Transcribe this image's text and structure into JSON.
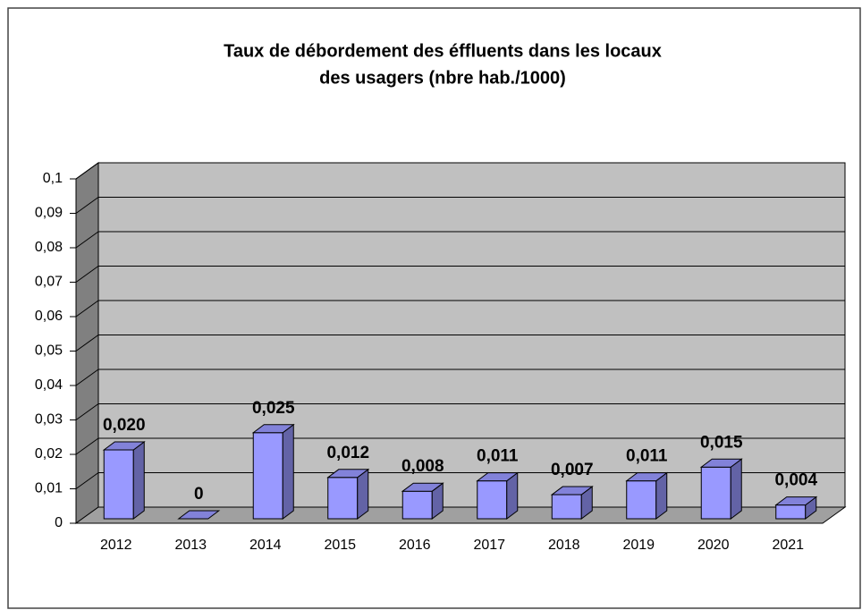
{
  "chart_data": {
    "type": "bar3d",
    "title": [
      "Taux de débordement des éffluents dans les locaux",
      "des usagers (nbre hab./1000)"
    ],
    "categories": [
      "2012",
      "2013",
      "2014",
      "2015",
      "2016",
      "2017",
      "2018",
      "2019",
      "2020",
      "2021"
    ],
    "values": [
      0.02,
      0,
      0.025,
      0.012,
      0.008,
      0.011,
      0.007,
      0.011,
      0.015,
      0.004
    ],
    "value_labels": [
      "0,020",
      "0",
      "0,025",
      "0,012",
      "0,008",
      "0,011",
      "0,007",
      "0,011",
      "0,015",
      "0,004"
    ],
    "color": "#9999ff",
    "ylim": [
      0,
      0.1
    ],
    "yticks": [
      0,
      {
        "value": 0.01,
        "label": "0,01"
      },
      {
        "value": 0.02,
        "label": "0,02"
      },
      {
        "value": 0.03,
        "label": "0,03"
      },
      {
        "value": 0.04,
        "label": "0,04"
      },
      {
        "value": 0.05,
        "label": "0,05"
      },
      {
        "value": 0.06,
        "label": "0,06"
      },
      {
        "value": 0.07,
        "label": "0,07"
      },
      {
        "value": 0.08,
        "label": "0,08"
      },
      {
        "value": 0.09,
        "label": "0,09"
      },
      {
        "value": 0.1,
        "label": "0,1"
      }
    ],
    "grid": true
  }
}
